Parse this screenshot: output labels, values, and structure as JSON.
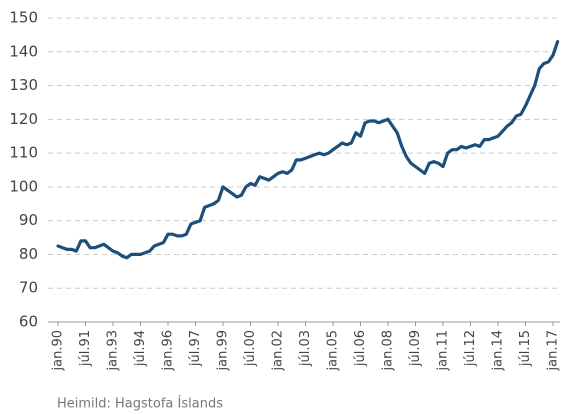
{
  "chart_data": {
    "type": "line",
    "source": "Heimild: Hagstofa Íslands",
    "color": "#1c4f7c",
    "grid": true,
    "ylim": [
      60,
      150
    ],
    "yticks": [
      60,
      70,
      80,
      90,
      100,
      110,
      120,
      130,
      140,
      150
    ],
    "categories": [
      "jan.90",
      null,
      null,
      null,
      null,
      null,
      "júl.91",
      null,
      null,
      null,
      null,
      null,
      "jan.93",
      null,
      null,
      null,
      null,
      null,
      "júl.94",
      null,
      null,
      null,
      null,
      null,
      "jan.96",
      null,
      null,
      null,
      null,
      null,
      "júl.97",
      null,
      null,
      null,
      null,
      null,
      "jan.99",
      null,
      null,
      null,
      null,
      null,
      "júl.00",
      null,
      null,
      null,
      null,
      null,
      "jan.02",
      null,
      null,
      null,
      null,
      null,
      "júl.03",
      null,
      null,
      null,
      null,
      null,
      "jan.05",
      null,
      null,
      null,
      null,
      null,
      "júl.06",
      null,
      null,
      null,
      null,
      null,
      "jan.08",
      null,
      null,
      null,
      null,
      null,
      "júl.09",
      null,
      null,
      null,
      null,
      null,
      "jan.11",
      null,
      null,
      null,
      null,
      null,
      "júl.12",
      null,
      null,
      null,
      null,
      null,
      "jan.14",
      null,
      null,
      null,
      null,
      null,
      "júl.15",
      null,
      null,
      null,
      null,
      null,
      "jan.17",
      null
    ],
    "values": [
      82.5,
      82,
      81.5,
      81.5,
      81,
      84,
      84,
      82,
      82,
      82.5,
      83,
      82,
      81,
      80.5,
      79.5,
      79,
      80,
      80,
      80,
      80.5,
      81,
      82.5,
      83,
      83.5,
      86,
      86,
      85.5,
      85.5,
      86,
      89,
      89.5,
      90,
      94,
      94.5,
      95,
      96,
      100,
      99,
      98,
      97,
      97.5,
      100,
      101,
      100.5,
      103,
      102.5,
      102,
      103,
      104,
      104.5,
      104,
      105,
      108,
      108,
      108.5,
      109,
      109.5,
      110,
      109.5,
      110,
      111,
      112,
      113,
      112.5,
      113,
      116,
      115,
      119,
      119.5,
      119.5,
      119,
      119.5,
      120,
      118,
      116,
      112,
      109,
      107,
      106,
      105,
      104,
      107,
      107.5,
      107,
      106,
      110,
      111,
      111,
      112,
      111.5,
      112,
      112.5,
      112,
      114,
      114,
      114.5,
      115,
      116.5,
      118,
      119,
      121,
      121.5,
      124,
      127,
      130,
      135,
      136.5,
      137,
      139,
      143
    ]
  }
}
